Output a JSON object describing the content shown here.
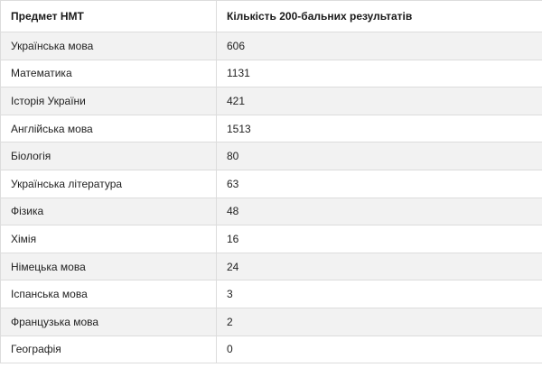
{
  "table": {
    "headers": [
      "Предмет НМТ",
      "Кількість 200-бальних результатів"
    ],
    "rows": [
      [
        "Українська мова",
        "606"
      ],
      [
        "Математика",
        "1131"
      ],
      [
        "Історія України",
        "421"
      ],
      [
        "Англійська мова",
        "1513"
      ],
      [
        "Біологія",
        "80"
      ],
      [
        "Українська література",
        "63"
      ],
      [
        "Фізика",
        "48"
      ],
      [
        "Хімія",
        "16"
      ],
      [
        "Німецька мова",
        "24"
      ],
      [
        "Іспанська мова",
        "3"
      ],
      [
        "Французька мова",
        "2"
      ],
      [
        "Географія",
        "0"
      ]
    ]
  }
}
